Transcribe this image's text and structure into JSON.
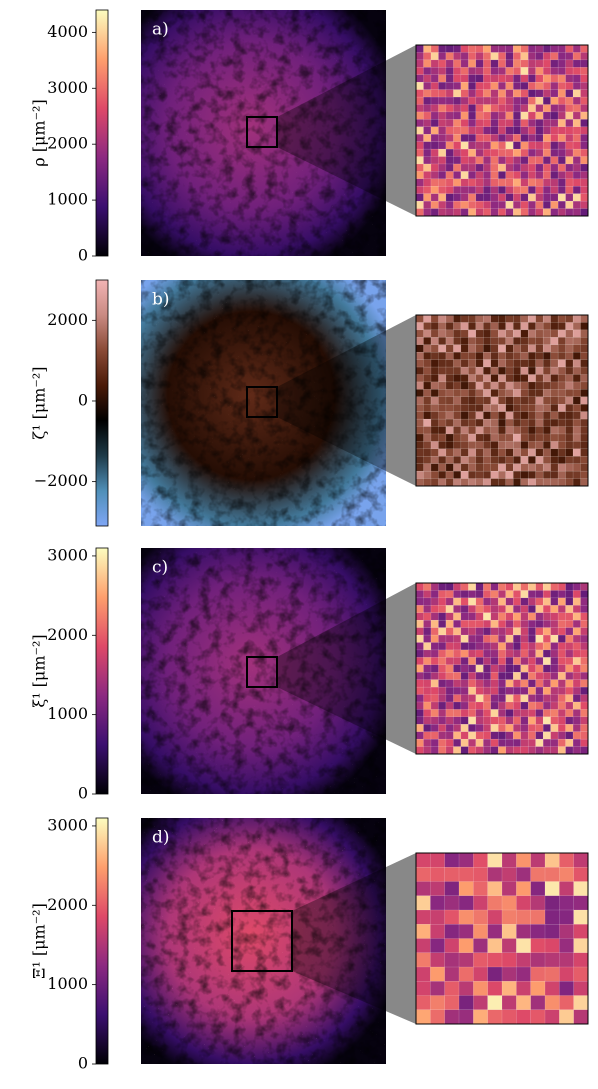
{
  "chart_data": [
    {
      "type": "heatmap",
      "panel_label": "a)",
      "colorbar_label": "ρ [μm⁻²]",
      "clim": [
        0,
        4400
      ],
      "cticks": [
        0,
        1000,
        2000,
        3000,
        4000
      ],
      "colormap": [
        "#000004",
        "#3b0f70",
        "#8c2981",
        "#de4968",
        "#fe9f6d",
        "#fcfdbf"
      ]
    },
    {
      "type": "heatmap",
      "panel_label": "b)",
      "colorbar_label": "ζ¹ [μm⁻²]",
      "clim": [
        -3100,
        3000
      ],
      "cticks": [
        {
          "value": -2000,
          "label": "−2000"
        },
        0,
        2000
      ],
      "colormap": [
        "#7fa6f5",
        "#4f8fb8",
        "#1e3a48",
        "#000000",
        "#4a1a08",
        "#8a4a36",
        "#c98a82",
        "#f2b4b4"
      ]
    },
    {
      "type": "heatmap",
      "panel_label": "c)",
      "colorbar_label": "ξ¹ [μm⁻²]",
      "clim": [
        0,
        3100
      ],
      "cticks": [
        0,
        1000,
        2000,
        3000
      ],
      "colormap": [
        "#000004",
        "#3b0f70",
        "#8c2981",
        "#de4968",
        "#fe9f6d",
        "#fcfdbf"
      ]
    },
    {
      "type": "heatmap",
      "panel_label": "d)",
      "colorbar_label": "Ξ¹ [μm⁻²]",
      "clim": [
        0,
        3100
      ],
      "cticks": [
        0,
        1000,
        2000,
        3000
      ],
      "colormap": [
        "#000004",
        "#3b0f70",
        "#8c2981",
        "#de4968",
        "#fe9f6d",
        "#fcfdbf"
      ]
    }
  ]
}
